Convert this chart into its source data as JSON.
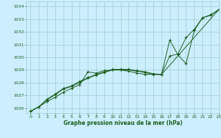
{
  "title": "Graphe pression niveau de la mer (hPa)",
  "bg_color": "#cceeff",
  "grid_color": "#99cccc",
  "line_color": "#1a5c1a",
  "xlim": [
    -0.5,
    23
  ],
  "ylim": [
    1025.6,
    1034.4
  ],
  "yticks": [
    1026,
    1027,
    1028,
    1029,
    1030,
    1031,
    1032,
    1033,
    1034
  ],
  "xticks": [
    0,
    1,
    2,
    3,
    4,
    5,
    6,
    7,
    8,
    9,
    10,
    11,
    12,
    13,
    14,
    15,
    16,
    17,
    18,
    19,
    20,
    21,
    22,
    23
  ],
  "line1_x": [
    0,
    1,
    2,
    3,
    4,
    5,
    6,
    7,
    8,
    9,
    10,
    11,
    12,
    13,
    14,
    15,
    16,
    17,
    18,
    19,
    20,
    21,
    22,
    23
  ],
  "line1_y": [
    1025.75,
    1026.1,
    1026.5,
    1026.85,
    1027.25,
    1027.55,
    1027.85,
    1028.85,
    1028.75,
    1028.95,
    1029.0,
    1029.0,
    1028.9,
    1028.75,
    1028.65,
    1028.65,
    1028.65,
    1031.35,
    1030.2,
    1029.5,
    1032.1,
    1033.1,
    1033.3,
    1033.75
  ],
  "line2_x": [
    0,
    1,
    2,
    3,
    4,
    5,
    6,
    7,
    8,
    9,
    10,
    11,
    12,
    13,
    14,
    15,
    16,
    17,
    18,
    19,
    20,
    21,
    22,
    23
  ],
  "line2_y": [
    1025.75,
    1026.1,
    1026.7,
    1027.1,
    1027.55,
    1027.75,
    1028.1,
    1028.4,
    1028.65,
    1028.85,
    1029.05,
    1029.05,
    1029.05,
    1028.95,
    1028.85,
    1028.7,
    1028.65,
    1030.1,
    1030.25,
    1031.55,
    1032.2,
    1033.1,
    1033.35,
    1033.75
  ],
  "line3_x": [
    0,
    1,
    2,
    3,
    4,
    5,
    6,
    7,
    8,
    9,
    10,
    11,
    12,
    13,
    14,
    15,
    16,
    23
  ],
  "line3_y": [
    1025.75,
    1026.1,
    1026.65,
    1027.05,
    1027.5,
    1027.7,
    1028.0,
    1028.35,
    1028.6,
    1028.8,
    1029.0,
    1029.0,
    1029.0,
    1028.9,
    1028.8,
    1028.65,
    1028.65,
    1033.75
  ]
}
